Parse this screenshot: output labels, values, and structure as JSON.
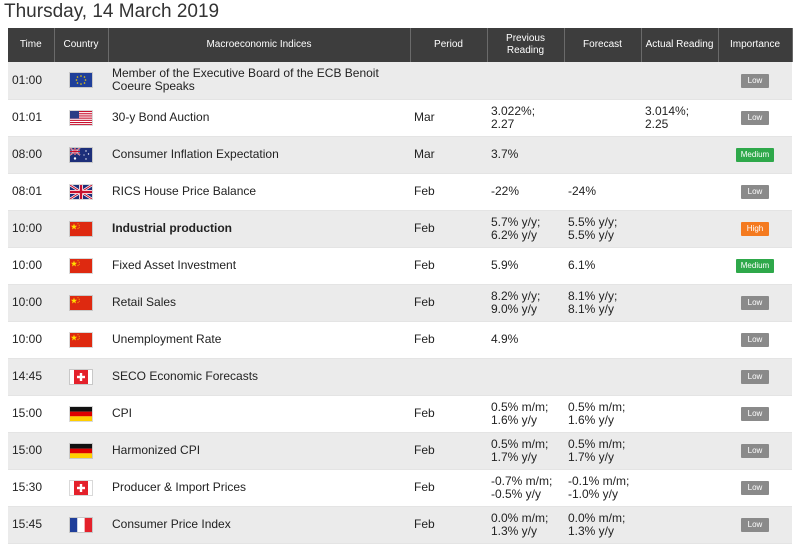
{
  "title": "Thursday, 14 March 2019",
  "headers": {
    "time": "Time",
    "country": "Country",
    "indices": "Macroeconomic Indices",
    "period": "Period",
    "previous": "Previous Reading",
    "forecast": "Forecast",
    "actual": "Actual Reading",
    "importance": "Importance"
  },
  "rows": [
    {
      "time": "01:00",
      "flag": "eu-flag-icon",
      "event": "Member of the Executive Board of the ECB Benoit Coeure Speaks",
      "bold": false,
      "period": "",
      "previous": "",
      "forecast": "",
      "actual": "",
      "importance": "Low"
    },
    {
      "time": "01:01",
      "flag": "us-flag-icon",
      "event": "30-y Bond Auction",
      "bold": false,
      "period": "Mar",
      "previous": "3.022%; 2.27",
      "forecast": "",
      "actual": "3.014%; 2.25",
      "importance": "Low"
    },
    {
      "time": "08:00",
      "flag": "au-flag-icon",
      "event": "Consumer Inflation Expectation",
      "bold": false,
      "period": "Mar",
      "previous": "3.7%",
      "forecast": "",
      "actual": "",
      "importance": "Medium"
    },
    {
      "time": "08:01",
      "flag": "uk-flag-icon",
      "event": "RICS House Price Balance",
      "bold": false,
      "period": "Feb",
      "previous": "-22%",
      "forecast": "-24%",
      "actual": "",
      "importance": "Low"
    },
    {
      "time": "10:00",
      "flag": "cn-flag-icon",
      "event": "Industrial production",
      "bold": true,
      "period": "Feb",
      "previous": "5.7% y/y; 6.2% y/y",
      "forecast": "5.5% y/y; 5.5% y/y",
      "actual": "",
      "importance": "High"
    },
    {
      "time": "10:00",
      "flag": "cn-flag-icon",
      "event": "Fixed Asset Investment",
      "bold": false,
      "period": "Feb",
      "previous": "5.9%",
      "forecast": "6.1%",
      "actual": "",
      "importance": "Medium"
    },
    {
      "time": "10:00",
      "flag": "cn-flag-icon",
      "event": "Retail Sales",
      "bold": false,
      "period": "Feb",
      "previous": "8.2% y/y; 9.0% y/y",
      "forecast": "8.1% y/y; 8.1% y/y",
      "actual": "",
      "importance": "Low"
    },
    {
      "time": "10:00",
      "flag": "cn-flag-icon",
      "event": "Unemployment Rate",
      "bold": false,
      "period": "Feb",
      "previous": "4.9%",
      "forecast": "",
      "actual": "",
      "importance": "Low"
    },
    {
      "time": "14:45",
      "flag": "ch-flag-icon",
      "event": "SECO Economic Forecasts",
      "bold": false,
      "period": "",
      "previous": "",
      "forecast": "",
      "actual": "",
      "importance": "Low"
    },
    {
      "time": "15:00",
      "flag": "de-flag-icon",
      "event": "CPI",
      "bold": false,
      "period": "Feb",
      "previous": "0.5% m/m; 1.6% y/y",
      "forecast": "0.5% m/m; 1.6% y/y",
      "actual": "",
      "importance": "Low"
    },
    {
      "time": "15:00",
      "flag": "de-flag-icon",
      "event": "Harmonized CPI",
      "bold": false,
      "period": "Feb",
      "previous": "0.5% m/m; 1.7% y/y",
      "forecast": "0.5% m/m; 1.7% y/y",
      "actual": "",
      "importance": "Low"
    },
    {
      "time": "15:30",
      "flag": "ch-flag-icon",
      "event": "Producer & Import Prices",
      "bold": false,
      "period": "Feb",
      "previous": "-0.7% m/m; -0.5% y/y",
      "forecast": "-0.1% m/m; -1.0% y/y",
      "actual": "",
      "importance": "Low"
    },
    {
      "time": "15:45",
      "flag": "fr-flag-icon",
      "event": "Consumer Price Index",
      "bold": false,
      "period": "Feb",
      "previous": "0.0% m/m; 1.3% y/y",
      "forecast": "0.0% m/m; 1.3% y/y",
      "actual": "",
      "importance": "Low"
    }
  ],
  "colors": {
    "header_bg": "#3d3d3d",
    "row_alt": "#ebebeb",
    "low": "#8a8a8a",
    "medium": "#2ea84a",
    "high": "#f47a1f"
  }
}
